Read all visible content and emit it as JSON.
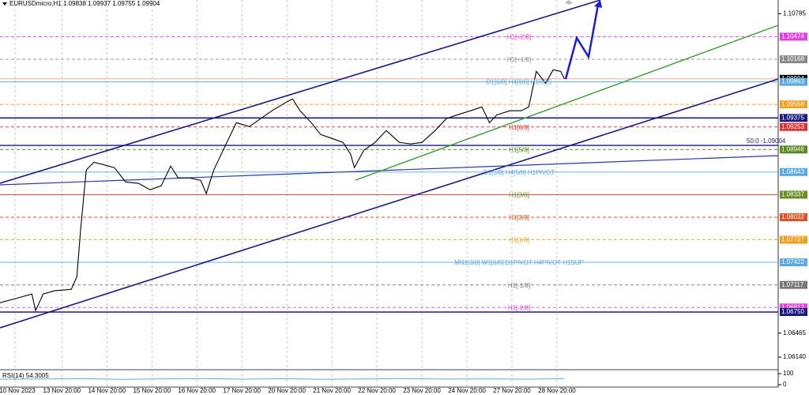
{
  "chart_data": [
    {
      "type": "line",
      "title": "EURUSDmicro,H1 1.09838 1.09937 1.09755 1.09904",
      "color": "#000000",
      "x": [
        0,
        8,
        17,
        19,
        23,
        29,
        38,
        41,
        43,
        45,
        46,
        50,
        55,
        61,
        67,
        74,
        80,
        86,
        91,
        95,
        101,
        107,
        110,
        114,
        120,
        126,
        133,
        139,
        145,
        152,
        156,
        160,
        166,
        171,
        177,
        183,
        187,
        189,
        194,
        200,
        206,
        213,
        219,
        225,
        232,
        238,
        244,
        251,
        257,
        261,
        265,
        272,
        278,
        282,
        286,
        291,
        295,
        299,
        301
      ],
      "values": [
        1.06876,
        1.0693,
        1.06994,
        1.0677,
        1.06994,
        1.07037,
        1.07058,
        1.07229,
        1.0787,
        1.08404,
        1.08671,
        1.08777,
        1.08745,
        1.08703,
        1.0851,
        1.08489,
        1.08404,
        1.08457,
        1.08724,
        1.08564,
        1.08564,
        1.08532,
        1.0835,
        1.08671,
        1.08991,
        1.09311,
        1.09258,
        1.09365,
        1.09472,
        1.09578,
        1.09632,
        1.09472,
        1.09311,
        1.09151,
        1.09098,
        1.09044,
        1.08884,
        1.08703,
        1.08938,
        1.09044,
        1.09204,
        1.09044,
        1.09023,
        1.09044,
        1.09204,
        1.09365,
        1.09418,
        1.09472,
        1.09525,
        1.09311,
        1.09418,
        1.09472,
        1.09472,
        1.09525,
        1.10005,
        1.09845,
        1.10027,
        1.10005,
        1.09904
      ],
      "xlim": [
        0,
        415
      ],
      "ylim": [
        1.0597,
        1.1097
      ],
      "xticks": [
        {
          "value": 8,
          "label": "10 Nov 2023"
        },
        {
          "value": 33,
          "label": "13 Nov 20:00"
        },
        {
          "value": 57,
          "label": "14 Nov 20:00"
        },
        {
          "value": 81,
          "label": "15 Nov 20:00"
        },
        {
          "value": 105,
          "label": "16 Nov 20:00"
        },
        {
          "value": 129,
          "label": "17 Nov 20:00"
        },
        {
          "value": 153,
          "label": "20 Nov 20:00"
        },
        {
          "value": 177,
          "label": "21 Nov 20:00"
        },
        {
          "value": 201,
          "label": "22 Nov 20:00"
        },
        {
          "value": 225,
          "label": "23 Nov 20:00"
        },
        {
          "value": 249,
          "label": "24 Nov 20:00"
        },
        {
          "value": 273,
          "label": "27 Nov 20:00"
        },
        {
          "value": 297,
          "label": "28 Nov 20:00"
        }
      ],
      "yticks": [
        1.10785,
        1.06465,
        {
          "value": 1.0614,
          "label": "1.06140"
        }
      ],
      "fib": {
        "value": 1.09004,
        "label": "50.0 -1.09004"
      },
      "levels": [
        {
          "name": "H1[+2/8]",
          "value": 1.10474,
          "color": "#e040e0",
          "style": "dashed"
        },
        {
          "name": "H1[+1/8]",
          "value": 1.10168,
          "color": "#8a8a8a",
          "style": "dashed"
        },
        {
          "value": 1.09904,
          "color": "#000000",
          "line_color": "#e8a0a0",
          "style": "solid"
        },
        {
          "name": "D1[6/8] H4[6/8] H1RES",
          "value": 1.09863,
          "color": "#5aa9e0",
          "style": "solid"
        },
        {
          "value": 1.09558,
          "color": "#f0a020",
          "style": "dashed"
        },
        {
          "value": 1.09375,
          "color": "#1a1a80",
          "style": "solid"
        },
        {
          "name": "H1[6/8]",
          "value": 1.09253,
          "color": "#e03030",
          "style": "dashed"
        },
        {
          "name": "H1[5/8]",
          "value": 1.08948,
          "color": "#5a8a20",
          "style": "dashed"
        },
        {
          "name": "D1[5/8] H4[5/8] H1PIVOT",
          "value": 1.08643,
          "color": "#5aa9e0",
          "style": "solid"
        },
        {
          "name": "H1[3/8]",
          "value": 1.08337,
          "color": "#6b8e23",
          "line_color": "#c03030",
          "style": "solid"
        },
        {
          "name": "H1[2/8]",
          "value": 1.08032,
          "color": "#e05020",
          "style": "dashed"
        },
        {
          "name": "H1[1/8]",
          "value": 1.07727,
          "color": "#f0a020",
          "style": "dashed"
        },
        {
          "name": "MN1[3/8] W1[6/8] D1PIVOT H4PIVOT H1SUP",
          "value": 1.07422,
          "color": "#5aa9e0",
          "style": "solid"
        },
        {
          "name": "H1[-1/8]",
          "value": 1.07117,
          "color": "#777777",
          "style": "dashed"
        },
        {
          "name": "H1[-2/8]",
          "value": 1.06812,
          "color": "#e040e0",
          "style": "dashed"
        },
        {
          "value": 1.0675,
          "value_label": "1.06750",
          "color": "#1a1a80",
          "style": "solid"
        }
      ]
    },
    {
      "type": "line",
      "title": "RSI(14) 54.3005",
      "color": "#5aa9e0",
      "x": [
        0,
        22,
        43,
        65,
        86,
        108,
        129,
        151,
        172,
        194,
        215,
        237,
        258,
        280,
        301
      ],
      "values": [
        50,
        52,
        55,
        48,
        53,
        55,
        50,
        54,
        49,
        52,
        55,
        51,
        53,
        50,
        54.3005
      ],
      "xlim": [
        0,
        415
      ],
      "ylim": [
        0,
        100
      ],
      "yticks": [
        0,
        100
      ]
    }
  ]
}
